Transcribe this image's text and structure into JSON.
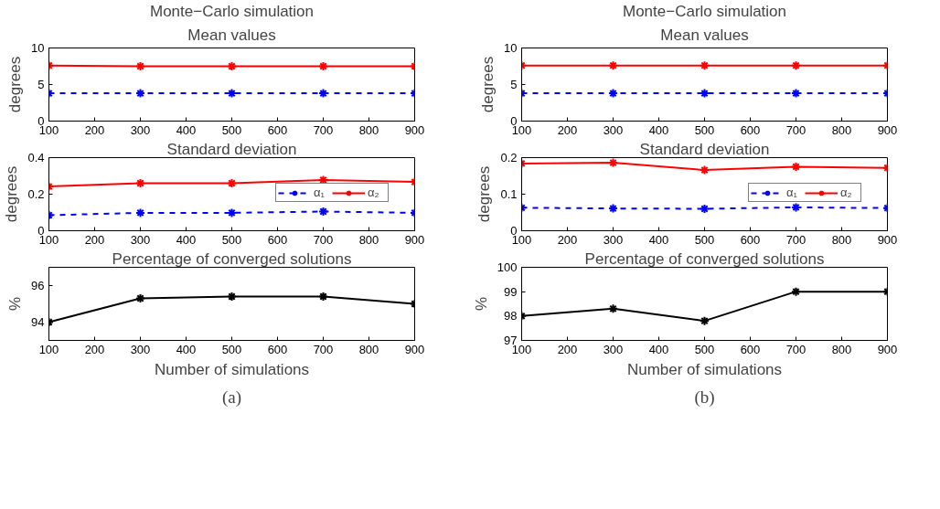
{
  "chart_data": [
    {
      "type": "line",
      "title": "Monte−Carlo simulation",
      "subtitle": "Mean values",
      "ylabel": "degrees",
      "x": [
        100,
        300,
        500,
        700,
        900
      ],
      "xlim": [
        100,
        900
      ],
      "xticks": [
        100,
        200,
        300,
        400,
        500,
        600,
        700,
        800,
        900
      ],
      "ylim": [
        0,
        10
      ],
      "yticks": [
        0,
        5,
        10
      ],
      "marker": "cross",
      "grid": false,
      "series": [
        {
          "color": "#0000ff",
          "line_style": "dashed",
          "values": [
            3.8,
            3.8,
            3.8,
            3.8,
            3.8
          ]
        },
        {
          "color": "#ff0000",
          "line_style": "solid",
          "values": [
            7.6,
            7.5,
            7.5,
            7.5,
            7.5
          ]
        }
      ]
    },
    {
      "type": "line",
      "title": "Standard deviation",
      "ylabel": "degrees",
      "x": [
        100,
        300,
        500,
        700,
        900
      ],
      "xlim": [
        100,
        900
      ],
      "xticks": [
        100,
        200,
        300,
        400,
        500,
        600,
        700,
        800,
        900
      ],
      "ylim": [
        0,
        0.4
      ],
      "yticks": [
        0,
        0.2,
        0.4
      ],
      "marker": "cross",
      "grid": false,
      "legend": "top right",
      "series": [
        {
          "name": "α₁",
          "color": "#0000ff",
          "line_style": "dashed",
          "values": [
            0.085,
            0.098,
            0.098,
            0.105,
            0.098
          ]
        },
        {
          "name": "α₂",
          "color": "#ff0000",
          "line_style": "solid",
          "values": [
            0.242,
            0.26,
            0.26,
            0.278,
            0.267
          ]
        }
      ]
    },
    {
      "type": "line",
      "title": "Percentage of converged solutions",
      "xlabel": "Number of simulations",
      "ylabel": "%",
      "annotations": [
        "(a)"
      ],
      "x": [
        100,
        300,
        500,
        700,
        900
      ],
      "xlim": [
        100,
        900
      ],
      "xticks": [
        100,
        200,
        300,
        400,
        500,
        600,
        700,
        800,
        900
      ],
      "ylim": [
        93,
        97
      ],
      "yticks": [
        94,
        96
      ],
      "marker": "cross",
      "grid": false,
      "series": [
        {
          "color": "#000000",
          "line_style": "solid",
          "values": [
            94.0,
            95.3,
            95.4,
            95.4,
            95.0
          ]
        }
      ]
    },
    {
      "type": "line",
      "title": "Monte−Carlo simulation",
      "subtitle": "Mean values",
      "ylabel": "degrees",
      "x": [
        100,
        300,
        500,
        700,
        900
      ],
      "xlim": [
        100,
        900
      ],
      "xticks": [
        100,
        200,
        300,
        400,
        500,
        600,
        700,
        800,
        900
      ],
      "ylim": [
        0,
        10
      ],
      "yticks": [
        0,
        5,
        10
      ],
      "marker": "cross",
      "grid": false,
      "series": [
        {
          "color": "#0000ff",
          "line_style": "dashed",
          "values": [
            3.8,
            3.8,
            3.8,
            3.8,
            3.8
          ]
        },
        {
          "color": "#ff0000",
          "line_style": "solid",
          "values": [
            7.6,
            7.6,
            7.6,
            7.6,
            7.6
          ]
        }
      ]
    },
    {
      "type": "line",
      "title": "Standard deviation",
      "ylabel": "degrees",
      "x": [
        100,
        300,
        500,
        700,
        900
      ],
      "xlim": [
        100,
        900
      ],
      "xticks": [
        100,
        200,
        300,
        400,
        500,
        600,
        700,
        800,
        900
      ],
      "ylim": [
        0,
        0.2
      ],
      "yticks": [
        0,
        0.1,
        0.2
      ],
      "marker": "cross",
      "grid": false,
      "legend": "top right",
      "series": [
        {
          "name": "α₁",
          "color": "#0000ff",
          "line_style": "dashed",
          "values": [
            0.063,
            0.061,
            0.06,
            0.064,
            0.062
          ]
        },
        {
          "name": "α₂",
          "color": "#ff0000",
          "line_style": "solid",
          "values": [
            0.184,
            0.186,
            0.166,
            0.175,
            0.172
          ]
        }
      ]
    },
    {
      "type": "line",
      "title": "Percentage of converged solutions",
      "xlabel": "Number of simulations",
      "ylabel": "%",
      "annotations": [
        "(b)"
      ],
      "x": [
        100,
        300,
        500,
        700,
        900
      ],
      "xlim": [
        100,
        900
      ],
      "xticks": [
        100,
        200,
        300,
        400,
        500,
        600,
        700,
        800,
        900
      ],
      "ylim": [
        97,
        100
      ],
      "yticks": [
        97,
        98,
        99,
        100
      ],
      "marker": "cross",
      "grid": false,
      "series": [
        {
          "color": "#000000",
          "line_style": "solid",
          "values": [
            98.0,
            98.3,
            97.8,
            99.0,
            99.0
          ]
        }
      ]
    }
  ]
}
